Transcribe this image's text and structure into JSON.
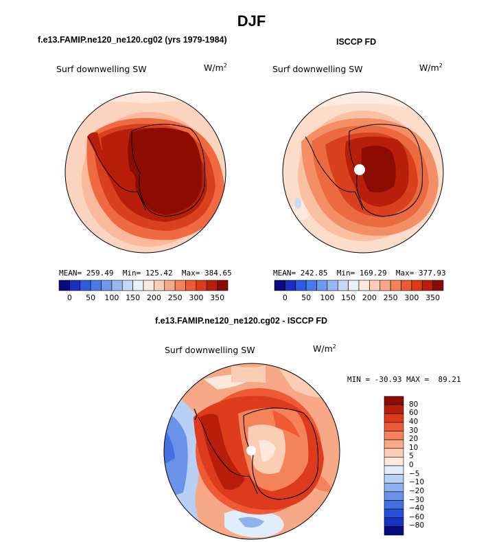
{
  "figure": {
    "title": "DJF",
    "left_panel_title": "f.e13.FAMIP.ne120_ne120.cg02 (yrs 1979-1984)",
    "right_panel_title": "ISCCP FD",
    "diff_panel_title": "f.e13.FAMIP.ne120_ne120.cg02 - ISCCP FD",
    "variable_label": "Surf downwelling SW",
    "units_base": "W/m",
    "units_exp": "2"
  },
  "colors": {
    "landcolor": "#000000",
    "bg": "#ffffff"
  },
  "chart_data": [
    {
      "type": "heatmap",
      "panel": "model",
      "projection": "south-polar-stereographic",
      "stats": {
        "mean_label": "MEAN=",
        "mean": "259.49",
        "min_label": "Min=",
        "min": "125.42",
        "max_label": "Max=",
        "max": "384.65"
      },
      "colorbar": {
        "orientation": "horizontal",
        "tick_labels": [
          "0",
          "50",
          "100",
          "150",
          "200",
          "250",
          "300",
          "350"
        ],
        "colors": [
          "#0a0a80",
          "#1a2fbf",
          "#2e5be0",
          "#4a7ae8",
          "#6f99ec",
          "#97b8f0",
          "#c4d8f5",
          "#e8f1f9",
          "#fde8dc",
          "#fbcdb5",
          "#f7a886",
          "#f4835c",
          "#ef5a35",
          "#de3a1c",
          "#b81e0c",
          "#8b0b03"
        ]
      }
    },
    {
      "type": "heatmap",
      "panel": "observations",
      "projection": "south-polar-stereographic",
      "stats": {
        "mean_label": "MEAN=",
        "mean": "242.85",
        "min_label": "Min=",
        "min": "169.29",
        "max_label": "Max=",
        "max": "377.93"
      },
      "colorbar": {
        "orientation": "horizontal",
        "tick_labels": [
          "0",
          "50",
          "100",
          "150",
          "200",
          "250",
          "300",
          "350"
        ],
        "colors": [
          "#0a0a80",
          "#1a2fbf",
          "#2e5be0",
          "#4a7ae8",
          "#6f99ec",
          "#97b8f0",
          "#c4d8f5",
          "#e8f1f9",
          "#fde8dc",
          "#fbcdb5",
          "#f7a886",
          "#f4835c",
          "#ef5a35",
          "#de3a1c",
          "#b81e0c",
          "#8b0b03"
        ]
      }
    },
    {
      "type": "heatmap",
      "panel": "difference",
      "projection": "south-polar-stereographic",
      "stats": {
        "min_label": "MIN =",
        "min": "-30.93",
        "max_label": "MAX =",
        "max": "89.21"
      },
      "colorbar": {
        "orientation": "vertical",
        "tick_labels": [
          "80",
          "60",
          "40",
          "30",
          "20",
          "10",
          "5",
          "0",
          "−5",
          "−10",
          "−20",
          "−30",
          "−40",
          "−60",
          "−80"
        ],
        "colors": [
          "#8b0b03",
          "#b81e0c",
          "#de3a1c",
          "#ef5a35",
          "#f4835c",
          "#f7a886",
          "#fbcdb5",
          "#fde8dc",
          "#dfeefa",
          "#b7d0f4",
          "#8fb2ee",
          "#6a92e8",
          "#4471e2",
          "#2551d8",
          "#1834bd",
          "#0a0a80"
        ]
      }
    }
  ]
}
